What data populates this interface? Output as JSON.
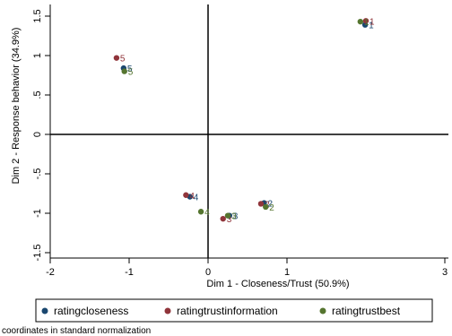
{
  "chart_data": {
    "type": "scatter",
    "title": "",
    "xlabel": "Dim 1 - Closeness/Trust (50.9%)",
    "ylabel": "Dim 2 - Response behavior (34.9%)",
    "xlim": [
      -2,
      3
    ],
    "ylim": [
      -1.6,
      1.6
    ],
    "xticks": [
      -2,
      -1,
      0,
      1,
      3
    ],
    "yticks": [
      1.5,
      1,
      0.5,
      0,
      -0.5,
      -1,
      -1.5
    ],
    "ytick_labels": [
      "1.5",
      "1",
      ".5",
      "0",
      "-.5",
      "-1",
      "-1.5"
    ],
    "reference_lines": {
      "x": 0,
      "y": 0
    },
    "grid": false,
    "legend_position": "bottom",
    "series": [
      {
        "name": "ratingcloseness",
        "color": "#1a476f",
        "points": [
          {
            "x": 1.99,
            "y": 1.39,
            "label": "1"
          },
          {
            "x": 0.71,
            "y": -0.87,
            "label": "2"
          },
          {
            "x": 0.27,
            "y": -1.03,
            "label": "3"
          },
          {
            "x": -0.23,
            "y": -0.79,
            "label": "4"
          },
          {
            "x": -1.07,
            "y": 0.84,
            "label": "5"
          }
        ]
      },
      {
        "name": "ratingtrustinformation",
        "color": "#90353b",
        "points": [
          {
            "x": 2.0,
            "y": 1.44,
            "label": "1"
          },
          {
            "x": 0.67,
            "y": -0.88,
            "label": "2"
          },
          {
            "x": 0.19,
            "y": -1.07,
            "label": "3"
          },
          {
            "x": -0.28,
            "y": -0.77,
            "label": "4"
          },
          {
            "x": -1.16,
            "y": 0.97,
            "label": "5"
          }
        ]
      },
      {
        "name": "ratingtrustbest",
        "color": "#55752f",
        "points": [
          {
            "x": 1.93,
            "y": 1.43,
            "label": "1"
          },
          {
            "x": 0.73,
            "y": -0.92,
            "label": "2"
          },
          {
            "x": 0.25,
            "y": -1.03,
            "label": "3"
          },
          {
            "x": -0.09,
            "y": -0.98,
            "label": "4"
          },
          {
            "x": -1.06,
            "y": 0.8,
            "label": "5"
          }
        ]
      }
    ]
  },
  "note": "coordinates in standard normalization"
}
